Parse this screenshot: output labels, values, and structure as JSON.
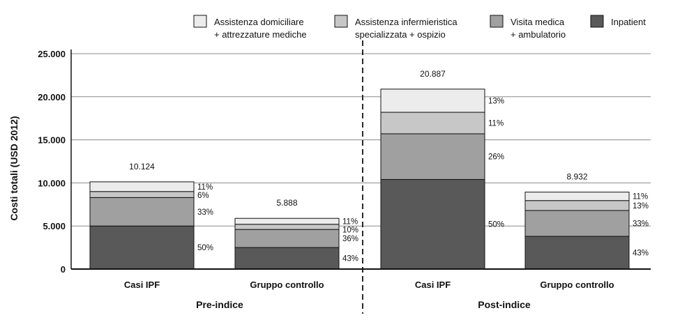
{
  "chart_data": {
    "type": "bar",
    "stacked": true,
    "ylabel": "Costi totali (USD 2012)",
    "ylim": [
      0,
      25000
    ],
    "yticks": [
      0,
      5000,
      10000,
      15000,
      20000,
      25000
    ],
    "ytick_labels": [
      "0",
      "5.000",
      "10.000",
      "15.000",
      "20.000",
      "25.000"
    ],
    "grid": true,
    "legend_position": "top",
    "series": [
      {
        "name_lines": [
          "Inpatient"
        ],
        "color": "#595959"
      },
      {
        "name_lines": [
          "Visita medica",
          "+ ambulatorio"
        ],
        "color": "#a0a0a0"
      },
      {
        "name_lines": [
          "Assistenza infermieristica",
          "specializzata + ospizio"
        ],
        "color": "#c7c7c7"
      },
      {
        "name_lines": [
          "Assistenza domiciliare",
          "+ attrezzature mediche"
        ],
        "color": "#ececec"
      }
    ],
    "groups": [
      {
        "label": "Pre-indice",
        "categories": [
          "Casi IPF",
          "Gruppo controllo"
        ]
      },
      {
        "label": "Post-indice",
        "categories": [
          "Casi IPF",
          "Gruppo controllo"
        ]
      }
    ],
    "bars": [
      {
        "category": "Casi IPF",
        "group": "Pre-indice",
        "total": 10124,
        "total_label": "10.124",
        "values": [
          5000,
          3300,
          700,
          1124
        ],
        "percent_labels": [
          "50%",
          "33%",
          "6%",
          "11%"
        ]
      },
      {
        "category": "Gruppo controllo",
        "group": "Pre-indice",
        "total": 5888,
        "total_label": "5.888",
        "values": [
          2500,
          2100,
          600,
          688
        ],
        "percent_labels": [
          "43%",
          "36%",
          "10%",
          "11%"
        ]
      },
      {
        "category": "Casi IPF",
        "group": "Post-indice",
        "total": 20887,
        "total_label": "20.887",
        "values": [
          10400,
          5300,
          2500,
          2687
        ],
        "percent_labels": [
          "50%",
          "26%",
          "11%",
          "13%"
        ]
      },
      {
        "category": "Gruppo controllo",
        "group": "Post-indice",
        "total": 8932,
        "total_label": "8.932",
        "values": [
          3800,
          3000,
          1150,
          982
        ],
        "percent_labels": [
          "43%",
          "33%",
          "13%",
          "11%"
        ]
      }
    ]
  }
}
